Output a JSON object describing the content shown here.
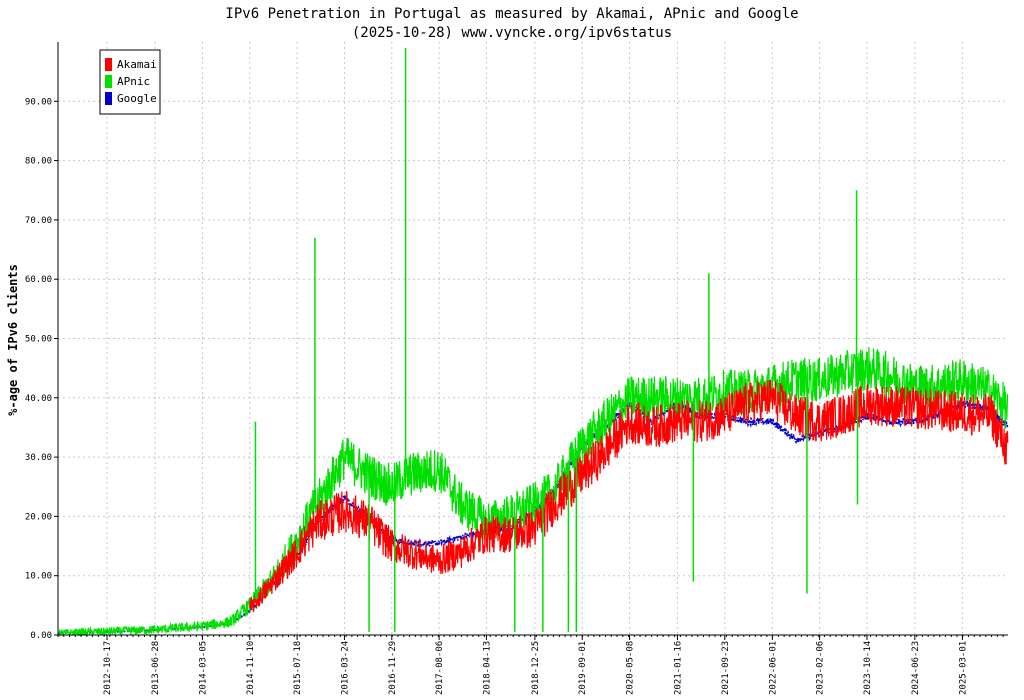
{
  "chart_data": {
    "type": "line",
    "title": "IPv6 Penetration in Portugal as measured by Akamai, APnic and Google",
    "subtitle": "(2025-10-28) www.vyncke.org/ipv6status",
    "ylabel": "%-age of IPv6 clients",
    "xlabel": "",
    "ylim": [
      0,
      100
    ],
    "y_ticks": [
      "0.00",
      "10.00",
      "20.00",
      "30.00",
      "40.00",
      "50.00",
      "60.00",
      "70.00",
      "80.00",
      "90.00"
    ],
    "x_range": [
      "2012-02-01",
      "2025-10-28"
    ],
    "x_ticks": [
      "2012-10-17",
      "2013-06-28",
      "2014-03-05",
      "2014-11-10",
      "2015-07-18",
      "2016-03-24",
      "2016-11-29",
      "2017-08-06",
      "2018-04-13",
      "2018-12-25",
      "2019-09-01",
      "2020-05-08",
      "2021-01-16",
      "2021-09-23",
      "2022-06-01",
      "2023-02-06",
      "2023-10-14",
      "2024-06-23",
      "2025-03-01"
    ],
    "grid": true,
    "legend_position": "top-left",
    "series": [
      {
        "name": "Akamai",
        "color": "#ff0000",
        "x": [
          "2014-11-10",
          "2015-03-01",
          "2015-07-18",
          "2015-11-01",
          "2016-03-24",
          "2016-08-01",
          "2016-11-29",
          "2017-03-01",
          "2017-08-06",
          "2017-12-01",
          "2018-04-13",
          "2018-08-15",
          "2018-12-25",
          "2019-04-01",
          "2019-09-01",
          "2020-01-01",
          "2020-05-08",
          "2020-09-01",
          "2021-01-16",
          "2021-05-15",
          "2021-09-23",
          "2022-01-15",
          "2022-06-01",
          "2022-10-01",
          "2023-02-06",
          "2023-06-01",
          "2023-10-14",
          "2025-08-01",
          "2025-10-28"
        ],
        "values": [
          4.5,
          8.5,
          14.0,
          19.0,
          21.0,
          19.0,
          15.0,
          14.0,
          12.5,
          14.0,
          17.0,
          17.0,
          18.0,
          22.0,
          27.0,
          31.0,
          36.0,
          35.0,
          36.0,
          36.0,
          37.0,
          39.0,
          40.0,
          37.0,
          36.0,
          37.0,
          39.0,
          37.0,
          31.0
        ]
      },
      {
        "name": "APnic",
        "color": "#00e000",
        "x": [
          "2012-02-01",
          "2012-10-17",
          "2013-06-28",
          "2014-03-05",
          "2014-08-01",
          "2014-11-10",
          "2015-03-01",
          "2015-07-18",
          "2015-11-01",
          "2016-03-24",
          "2016-08-01",
          "2016-11-29",
          "2017-03-01",
          "2017-08-06",
          "2017-12-01",
          "2018-04-13",
          "2018-08-15",
          "2018-12-25",
          "2019-04-01",
          "2019-09-01",
          "2020-01-01",
          "2020-05-08",
          "2020-09-01",
          "2021-01-16",
          "2021-05-15",
          "2021-09-23",
          "2022-01-15",
          "2022-06-01",
          "2022-10-01",
          "2023-02-06",
          "2023-06-01",
          "2023-10-14",
          "2024-02-01",
          "2024-06-23",
          "2024-10-15",
          "2025-03-01",
          "2025-08-01",
          "2025-10-28"
        ],
        "values": [
          0.3,
          0.6,
          0.9,
          1.5,
          2.2,
          5.0,
          9.0,
          16.0,
          22.0,
          30.0,
          27.0,
          25.0,
          27.0,
          28.0,
          22.0,
          19.0,
          20.0,
          22.0,
          24.0,
          32.0,
          36.0,
          40.0,
          40.0,
          40.0,
          40.0,
          41.0,
          41.0,
          42.0,
          43.0,
          43.0,
          44.0,
          45.0,
          44.0,
          42.0,
          42.0,
          43.0,
          41.0,
          38.0
        ]
      },
      {
        "name": "Google",
        "color": "#0000cc",
        "x": [
          "2012-02-01",
          "2012-10-17",
          "2013-06-28",
          "2014-03-05",
          "2014-08-01",
          "2014-11-10",
          "2015-03-01",
          "2015-07-18",
          "2015-11-01",
          "2016-03-24",
          "2016-08-01",
          "2016-11-29",
          "2017-03-01",
          "2017-08-06",
          "2017-12-01",
          "2018-04-13",
          "2018-08-15",
          "2018-12-25",
          "2019-04-01",
          "2019-09-01",
          "2020-01-01",
          "2020-05-08",
          "2020-09-01",
          "2021-01-16",
          "2021-05-15",
          "2021-09-23",
          "2022-01-15",
          "2022-06-01",
          "2022-10-01",
          "2023-02-06",
          "2023-06-01",
          "2023-10-14",
          "2024-02-01",
          "2024-06-23",
          "2024-10-15",
          "2025-03-01",
          "2025-08-01",
          "2025-10-28"
        ],
        "values": [
          0.3,
          0.5,
          0.8,
          1.3,
          2.0,
          4.0,
          8.0,
          13.0,
          19.0,
          23.0,
          20.0,
          16.0,
          15.5,
          15.5,
          16.5,
          17.5,
          18.0,
          21.0,
          24.0,
          32.0,
          35.0,
          39.0,
          36.0,
          39.0,
          37.0,
          37.0,
          36.0,
          36.0,
          33.0,
          34.0,
          35.0,
          37.0,
          36.0,
          36.0,
          37.0,
          39.0,
          38.0,
          35.0
        ]
      }
    ],
    "spikes": [
      {
        "series": "APnic",
        "x": "2014-12-10",
        "y": 36.0
      },
      {
        "series": "APnic",
        "x": "2015-10-20",
        "y": 67.0
      },
      {
        "series": "APnic",
        "x": "2017-02-10",
        "y": 99.0
      },
      {
        "series": "APnic",
        "x": "2021-04-10",
        "y": 9.0
      },
      {
        "series": "APnic",
        "x": "2021-07-01",
        "y": 61.0
      },
      {
        "series": "APnic",
        "x": "2022-12-01",
        "y": 7.0
      },
      {
        "series": "APnic",
        "x": "2023-08-20",
        "y": 75.0
      },
      {
        "series": "APnic",
        "x": "2023-08-25",
        "y": 22.0
      },
      {
        "series": "APnic",
        "x": "2016-08-01",
        "y": 0.5
      },
      {
        "series": "APnic",
        "x": "2016-12-15",
        "y": 0.5
      },
      {
        "series": "APnic",
        "x": "2018-09-10",
        "y": 0.5
      },
      {
        "series": "APnic",
        "x": "2019-02-05",
        "y": 0.5
      },
      {
        "series": "APnic",
        "x": "2019-06-20",
        "y": 0.5
      },
      {
        "series": "APnic",
        "x": "2019-08-01",
        "y": 0.5
      }
    ]
  }
}
